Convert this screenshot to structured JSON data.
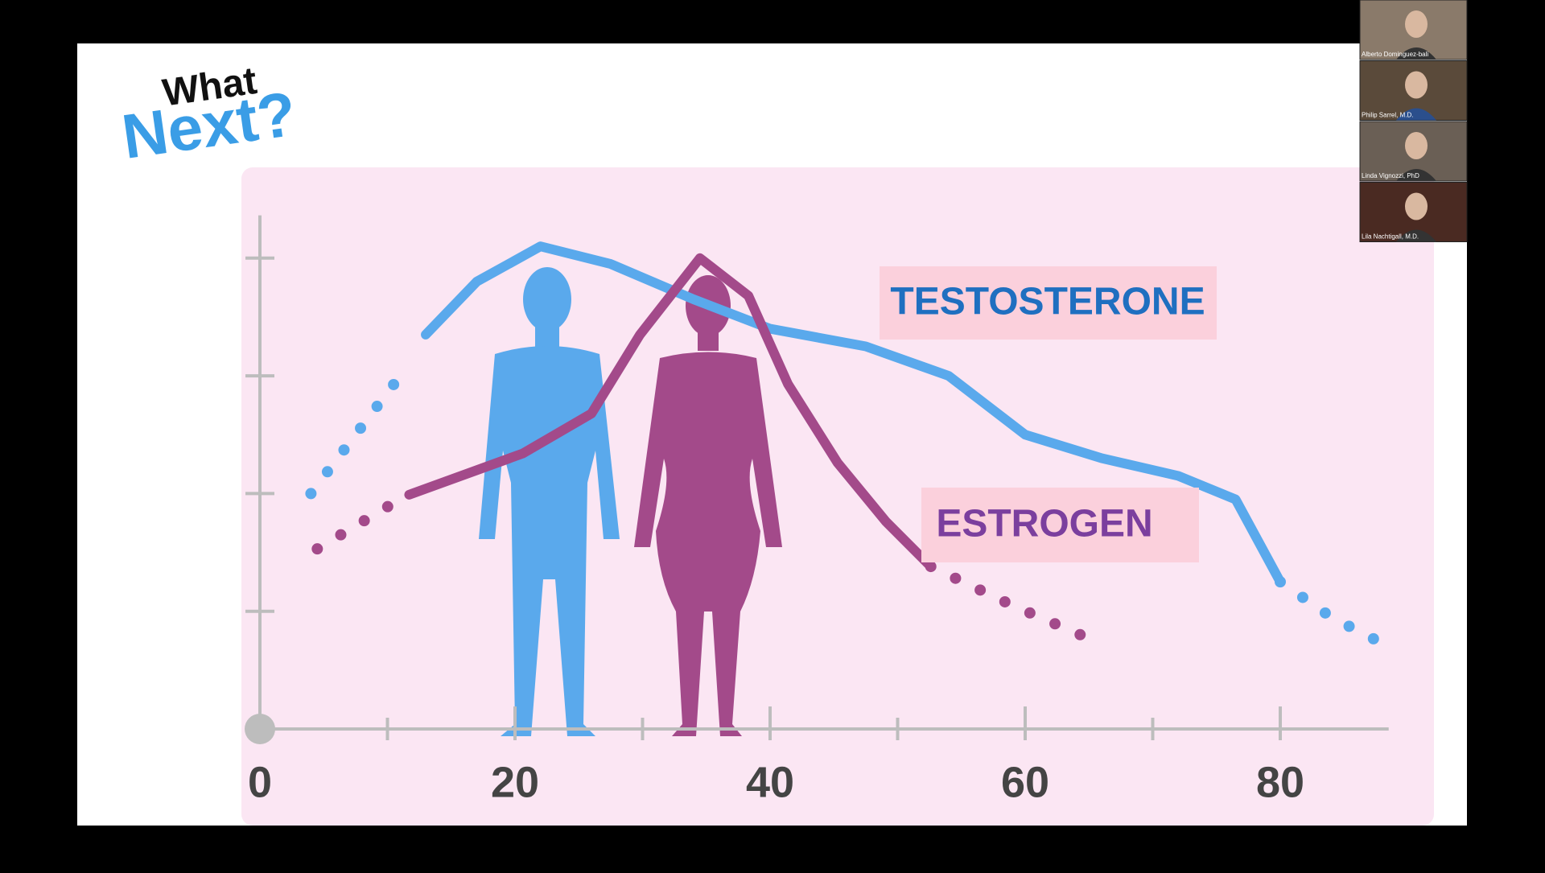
{
  "logo": {
    "line1": "What",
    "line2": "Next?"
  },
  "participants": [
    "Alberto Dominguez-bali",
    "Philip Sarrel, M.D.",
    "Linda Vignozzi, PhD",
    "Lila Nachtigall, M.D."
  ],
  "chart_data": {
    "type": "line",
    "xlim": [
      0,
      88.5
    ],
    "ylim": [
      0,
      4.5
    ],
    "xticks": [
      0,
      20,
      40,
      60,
      80
    ],
    "xticks_minor": [
      10,
      30,
      50,
      70
    ],
    "yticks": [
      1,
      2,
      3,
      4
    ],
    "series": [
      {
        "name": "TESTOSTERONE",
        "color": "#5aa9ec",
        "style": "solid",
        "x": [
          13,
          17,
          22,
          27.5,
          34,
          40,
          47.5,
          54,
          60,
          66,
          72,
          76.5,
          80
        ],
        "values": [
          3.35,
          3.8,
          4.1,
          3.95,
          3.65,
          3.4,
          3.25,
          3.0,
          2.5,
          2.3,
          2.15,
          1.95,
          1.25
        ]
      },
      {
        "color": "#5aa9ec",
        "style": "dotted",
        "x": [
          4,
          7.5,
          11
        ],
        "values": [
          2.0,
          2.5,
          3.0
        ]
      },
      {
        "color": "#5aa9ec",
        "style": "dotted",
        "x": [
          80,
          84,
          88.5
        ],
        "values": [
          1.25,
          0.95,
          0.7
        ]
      },
      {
        "name": "ESTROGEN",
        "color": "#a34a8a",
        "style": "solid",
        "x": [
          11.7,
          20.6,
          26,
          29.8,
          34.5,
          38.3,
          41.4,
          45.3,
          49.1,
          52.6
        ],
        "values": [
          1.99,
          2.34,
          2.68,
          3.35,
          4.0,
          3.68,
          2.93,
          2.26,
          1.76,
          1.38
        ]
      },
      {
        "color": "#a34a8a",
        "style": "dotted",
        "x": [
          4.5,
          10.5
        ],
        "values": [
          1.53,
          1.92
        ]
      },
      {
        "color": "#a34a8a",
        "style": "dotted",
        "x": [
          52.6,
          59,
          65.4
        ],
        "values": [
          1.38,
          1.05,
          0.75
        ]
      }
    ]
  }
}
